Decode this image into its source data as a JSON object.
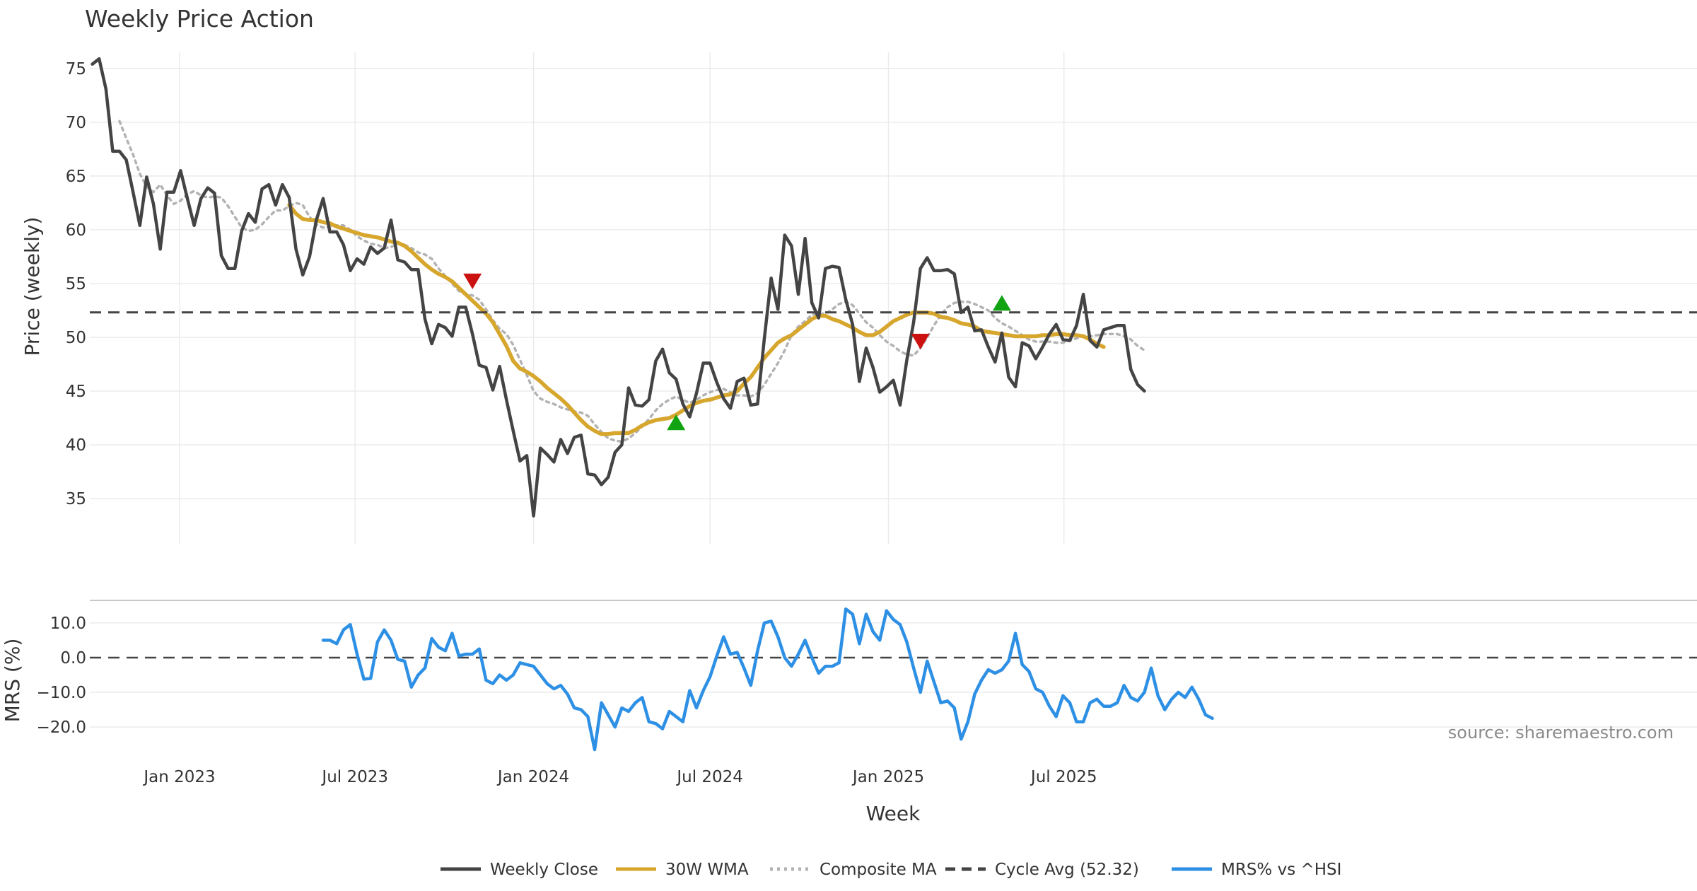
{
  "colors": {
    "weekly_close": "#444444",
    "wma30": "#d6a62d",
    "composite_ma": "#b3b3b3",
    "cycle_avg": "#444444",
    "mrs": "#2e90e5",
    "signal_sell": "#cc1111",
    "signal_buy": "#12a312",
    "grid": "#ebebeb",
    "text": "#333333",
    "source": "#8a8a8a"
  },
  "chart_data": [
    {
      "panel": "price",
      "type": "line",
      "title": "Weekly Price Action",
      "ylabel": "Price (weekly)",
      "xlabel": "Week",
      "ylim": [
        30.8,
        76.5
      ],
      "yticks": [
        35,
        40,
        45,
        50,
        55,
        60,
        65,
        70,
        75
      ],
      "x_start": "2022-10-03",
      "x_step_weeks": 1,
      "x_range": [
        "2022-09-26",
        "2025-11-10"
      ],
      "xticks": [
        {
          "date": "2023-01-01",
          "label": "Jan 2023"
        },
        {
          "date": "2023-07-01",
          "label": "Jul 2023"
        },
        {
          "date": "2024-01-01",
          "label": "Jan 2024"
        },
        {
          "date": "2024-07-01",
          "label": "Jul 2024"
        },
        {
          "date": "2025-01-01",
          "label": "Jan 2025"
        },
        {
          "date": "2025-07-01",
          "label": "Jul 2025"
        }
      ],
      "grid": true,
      "series": [
        {
          "name": "Weekly Close",
          "style": "solid",
          "offset": 0,
          "values": [
            75.4,
            75.9,
            73.1,
            67.3,
            67.3,
            66.5,
            63.5,
            60.4,
            64.9,
            62.4,
            58.2,
            63.5,
            63.5,
            65.5,
            62.9,
            60.4,
            62.9,
            63.9,
            63.4,
            57.6,
            56.4,
            56.4,
            59.9,
            61.5,
            60.7,
            63.8,
            64.2,
            62.3,
            64.2,
            63.0,
            58.2,
            55.8,
            57.5,
            60.9,
            62.9,
            59.8,
            59.8,
            58.6,
            56.2,
            57.3,
            56.8,
            58.4,
            57.8,
            58.3,
            60.9,
            57.2,
            57.0,
            56.3,
            56.3,
            51.7,
            49.4,
            51.2,
            50.9,
            50.1,
            52.8,
            52.8,
            50.3,
            47.4,
            47.2,
            45.1,
            47.3,
            44.2,
            41.3,
            38.5,
            39.0,
            33.4,
            39.7,
            39.1,
            38.4,
            40.5,
            39.2,
            40.7,
            40.9,
            37.3,
            37.2,
            36.3,
            37.0,
            39.3,
            40.0,
            45.3,
            43.7,
            43.6,
            44.2,
            47.8,
            48.9,
            46.7,
            46.1,
            43.8,
            42.6,
            44.8,
            47.6,
            47.6,
            45.8,
            44.3,
            43.4,
            45.9,
            46.2,
            43.7,
            43.8,
            49.9,
            55.5,
            52.6,
            59.5,
            58.5,
            54.0,
            59.2,
            53.2,
            51.8,
            56.4,
            56.6,
            56.5,
            53.5,
            51.2,
            45.9,
            49.0,
            47.2,
            44.9,
            45.4,
            46.0,
            43.7,
            47.9,
            51.4,
            56.4,
            57.4,
            56.2,
            56.2,
            56.3,
            55.9,
            52.3,
            52.8,
            50.6,
            50.7,
            49.1,
            47.7,
            50.4,
            46.3,
            45.4,
            49.5,
            49.2,
            48.0,
            49.1,
            50.3,
            51.2,
            49.8,
            49.7,
            51.1,
            54.0,
            49.7,
            49.1,
            50.7,
            50.9,
            51.1,
            51.1,
            47.0,
            45.6,
            45.0
          ]
        },
        {
          "name": "30W WMA",
          "style": "solid",
          "offset": 29,
          "values": [
            62.3,
            61.5,
            61.0,
            60.9,
            60.9,
            60.7,
            60.6,
            60.3,
            60.1,
            59.9,
            59.7,
            59.5,
            59.4,
            59.3,
            59.1,
            58.9,
            58.8,
            58.5,
            58.0,
            57.4,
            56.8,
            56.3,
            55.9,
            55.6,
            55.2,
            54.6,
            54.0,
            53.4,
            52.8,
            52.2,
            51.4,
            50.3,
            49.2,
            47.8,
            47.1,
            46.8,
            46.4,
            45.9,
            45.3,
            44.8,
            44.3,
            43.7,
            43.0,
            42.3,
            41.7,
            41.3,
            41.0,
            41.0,
            41.1,
            41.1,
            41.1,
            41.4,
            41.8,
            42.1,
            42.3,
            42.4,
            42.5,
            42.8,
            43.2,
            43.6,
            43.9,
            44.1,
            44.2,
            44.4,
            44.6,
            44.7,
            45.0,
            45.7,
            46.3,
            47.2,
            48.1,
            48.8,
            49.5,
            49.9,
            50.2,
            50.7,
            51.2,
            51.7,
            52.0,
            52.0,
            51.7,
            51.5,
            51.2,
            50.9,
            50.5,
            50.2,
            50.2,
            50.5,
            51.0,
            51.5,
            51.8,
            52.1,
            52.3,
            52.3,
            52.3,
            52.2,
            51.9,
            51.8,
            51.6,
            51.3,
            51.2,
            51.0,
            50.6,
            50.5,
            50.4,
            50.3,
            50.2,
            50.1,
            50.1,
            50.1,
            50.1,
            50.2,
            50.2,
            50.3,
            50.3,
            50.2,
            50.2,
            50.1,
            49.8,
            49.4,
            49.1
          ]
        },
        {
          "name": "Composite MA",
          "style": "dotted",
          "offset": 4,
          "values": [
            70.1,
            68.5,
            67.0,
            65.2,
            64.0,
            63.5,
            64.2,
            63.2,
            62.4,
            62.7,
            63.3,
            63.6,
            63.2,
            63.0,
            63.1,
            63.0,
            62.2,
            61.2,
            60.2,
            59.9,
            60.0,
            60.5,
            61.2,
            61.8,
            61.8,
            62.2,
            62.5,
            62.3,
            61.2,
            60.5,
            60.2,
            60.3,
            60.4,
            60.4,
            60.0,
            59.4,
            59.0,
            58.7,
            58.6,
            58.3,
            58.4,
            58.7,
            58.6,
            58.3,
            57.9,
            57.7,
            57.3,
            56.4,
            55.7,
            55.0,
            54.3,
            54.0,
            53.9,
            53.5,
            52.6,
            51.6,
            50.8,
            50.3,
            49.3,
            47.9,
            46.5,
            45.0,
            44.3,
            44.0,
            43.8,
            43.5,
            43.3,
            43.1,
            43.0,
            42.7,
            41.9,
            41.2,
            40.6,
            40.4,
            40.3,
            40.6,
            41.1,
            41.7,
            42.4,
            43.2,
            43.8,
            44.2,
            44.5,
            44.2,
            43.9,
            44.2,
            44.6,
            44.9,
            45.1,
            45.2,
            44.9,
            44.6,
            44.6,
            44.5,
            44.8,
            45.6,
            46.6,
            47.6,
            48.8,
            50.2,
            51.0,
            51.5,
            52.1,
            52.2,
            52.2,
            52.6,
            53.1,
            53.3,
            53.0,
            52.2,
            51.4,
            50.9,
            50.2,
            49.6,
            49.2,
            48.7,
            48.4,
            48.3,
            49.0,
            50.0,
            51.1,
            52.1,
            52.8,
            53.2,
            53.3,
            53.3,
            53.1,
            52.8,
            52.5,
            51.8,
            51.3,
            51.0,
            50.6,
            50.2,
            49.8,
            49.6,
            49.6,
            49.6,
            49.5,
            49.5,
            49.7,
            49.9,
            50.1,
            50.1,
            50.2,
            50.3,
            50.3,
            50.3,
            50.1,
            49.8,
            49.2,
            48.8
          ]
        },
        {
          "name": "Cycle Avg (52.32)",
          "style": "dashed",
          "constant": 52.32
        }
      ],
      "markers": [
        {
          "type": "sell",
          "shape": "triangle-down",
          "date": "2023-10-30",
          "y": 55.2
        },
        {
          "type": "buy",
          "shape": "triangle-up",
          "date": "2024-05-27",
          "y": 42.1
        },
        {
          "type": "sell",
          "shape": "triangle-down",
          "date": "2025-02-03",
          "y": 49.6
        },
        {
          "type": "buy",
          "shape": "triangle-up",
          "date": "2025-04-28",
          "y": 53.2
        }
      ]
    },
    {
      "panel": "mrs",
      "type": "line",
      "ylabel": "MRS (%)",
      "ylim": [
        -26.5,
        16.5
      ],
      "yticks": [
        -20,
        -10,
        0,
        10
      ],
      "ytick_labels": [
        "−20.0",
        "−10.0",
        "0.0",
        "10.0"
      ],
      "grid": true,
      "zero_line": {
        "y": 0,
        "style": "dashed"
      },
      "series": [
        {
          "name": "MRS% vs ^HSI",
          "style": "solid",
          "offset": 34,
          "values": [
            5.0,
            5.0,
            4.0,
            8.0,
            9.5,
            1.0,
            -6.2,
            -6.0,
            4.5,
            8.0,
            5.0,
            -0.5,
            -1.0,
            -8.5,
            -5.0,
            -3.0,
            5.5,
            3.0,
            2.0,
            7.0,
            0.5,
            1.0,
            1.0,
            2.5,
            -6.5,
            -7.5,
            -5.0,
            -6.5,
            -5.0,
            -1.5,
            -2.0,
            -2.5,
            -5.0,
            -7.5,
            -9.0,
            -8.0,
            -10.5,
            -14.5,
            -15.0,
            -17.0,
            -26.5,
            -13.0,
            -16.5,
            -20.0,
            -14.5,
            -15.5,
            -13.0,
            -11.5,
            -18.5,
            -19.0,
            -20.5,
            -15.5,
            -17.0,
            -18.5,
            -9.5,
            -14.5,
            -9.5,
            -5.5,
            0.5,
            6.0,
            1.0,
            1.5,
            -3.0,
            -8.0,
            2.0,
            10.0,
            10.5,
            6.0,
            0.0,
            -2.5,
            1.0,
            5.0,
            0.0,
            -4.5,
            -2.5,
            -2.5,
            -1.5,
            14.0,
            12.5,
            4.0,
            12.5,
            7.5,
            5.0,
            13.5,
            11.0,
            9.5,
            4.5,
            -3.0,
            -10.0,
            -1.0,
            -7.0,
            -13.0,
            -12.5,
            -14.5,
            -23.5,
            -18.5,
            -10.5,
            -6.5,
            -3.5,
            -4.5,
            -3.5,
            -1.0,
            7.0,
            -2.0,
            -4.0,
            -9.0,
            -10.0,
            -14.0,
            -17.0,
            -11.0,
            -13.0,
            -18.5,
            -18.5,
            -13.0,
            -12.0,
            -14.0,
            -14.0,
            -13.0,
            -8.0,
            -11.5,
            -12.5,
            -10.0,
            -3.0,
            -11.0,
            -15.0,
            -12.0,
            -10.0,
            -11.5,
            -8.5,
            -12.0,
            -16.5,
            -17.5
          ]
        }
      ]
    }
  ],
  "legend": {
    "placement": "bottom-center",
    "entries": [
      {
        "label": "Weekly Close",
        "style": "solid",
        "color_key": "weekly_close"
      },
      {
        "label": "30W WMA",
        "style": "solid",
        "color_key": "wma30"
      },
      {
        "label": "Composite MA",
        "style": "dotted",
        "color_key": "composite_ma"
      },
      {
        "label": "Cycle Avg (52.32)",
        "style": "dashed",
        "color_key": "cycle_avg"
      },
      {
        "label": "MRS% vs ^HSI",
        "style": "solid",
        "color_key": "mrs"
      }
    ]
  },
  "source": "source: sharemaestro.com"
}
